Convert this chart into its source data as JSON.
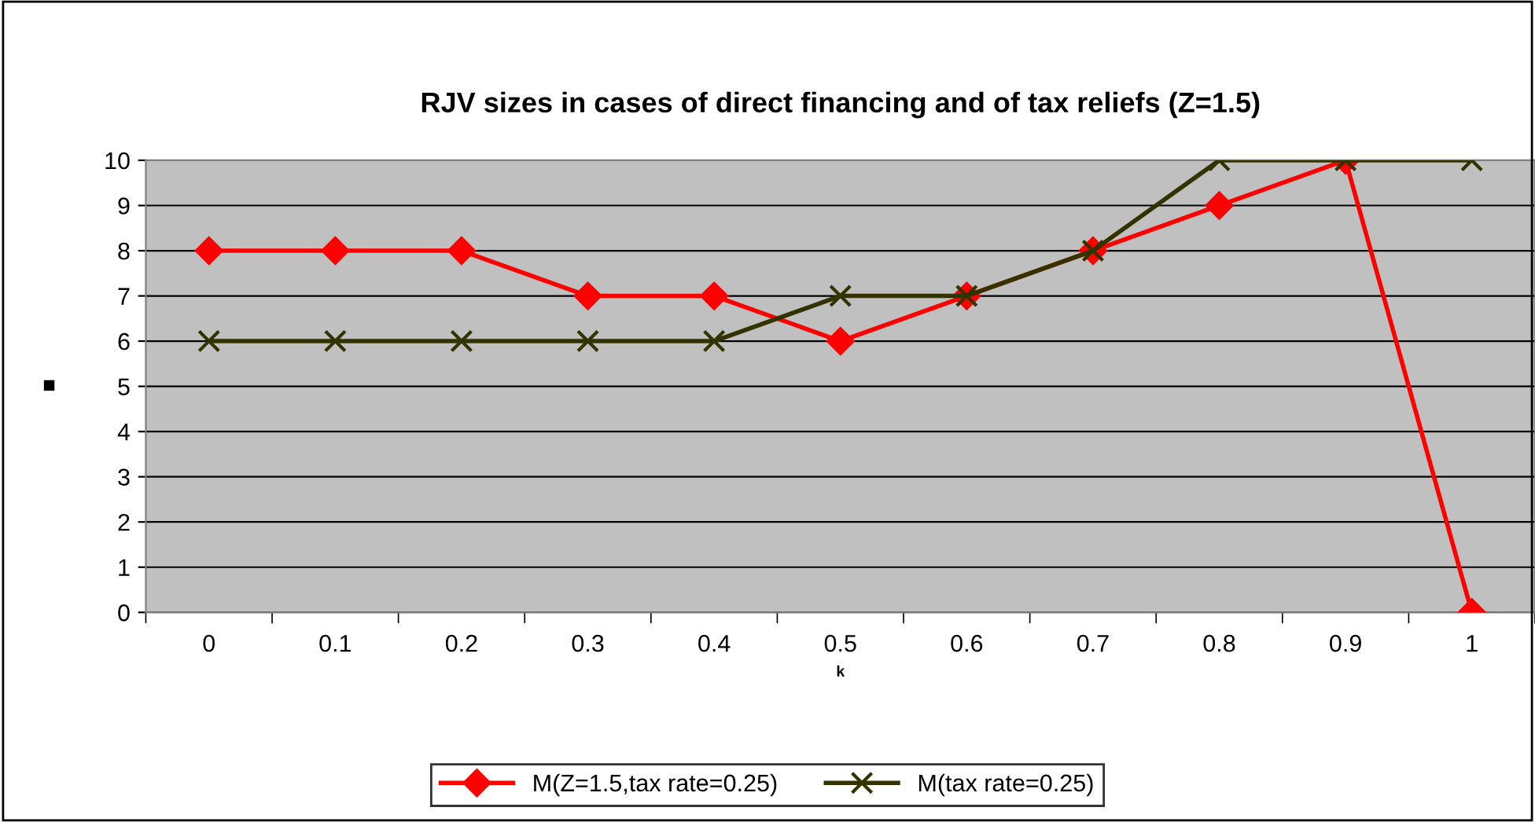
{
  "chart_data": {
    "type": "line",
    "title": "RJV sizes in cases of direct financing and of tax reliefs (Z=1.5)",
    "xlabel": "k",
    "ylabel": "■",
    "categories": [
      "0",
      "0.1",
      "0.2",
      "0.3",
      "0.4",
      "0.5",
      "0.6",
      "0.7",
      "0.8",
      "0.9",
      "1"
    ],
    "series": [
      {
        "name": "M(Z=1.5,tax rate=0.25)",
        "color": "#ff0000",
        "marker": "diamond",
        "values": [
          8,
          8,
          8,
          7,
          7,
          6,
          7,
          8,
          9,
          10,
          0
        ]
      },
      {
        "name": "M(tax rate=0.25)",
        "color": "#333300",
        "marker": "cross",
        "values": [
          6,
          6,
          6,
          6,
          6,
          7,
          7,
          8,
          10,
          10,
          10
        ]
      }
    ],
    "ylim": [
      0,
      10
    ],
    "yticks": [
      0,
      1,
      2,
      3,
      4,
      5,
      6,
      7,
      8,
      9,
      10
    ],
    "grid": "y",
    "legend": "bottom",
    "line_style": "solid"
  }
}
